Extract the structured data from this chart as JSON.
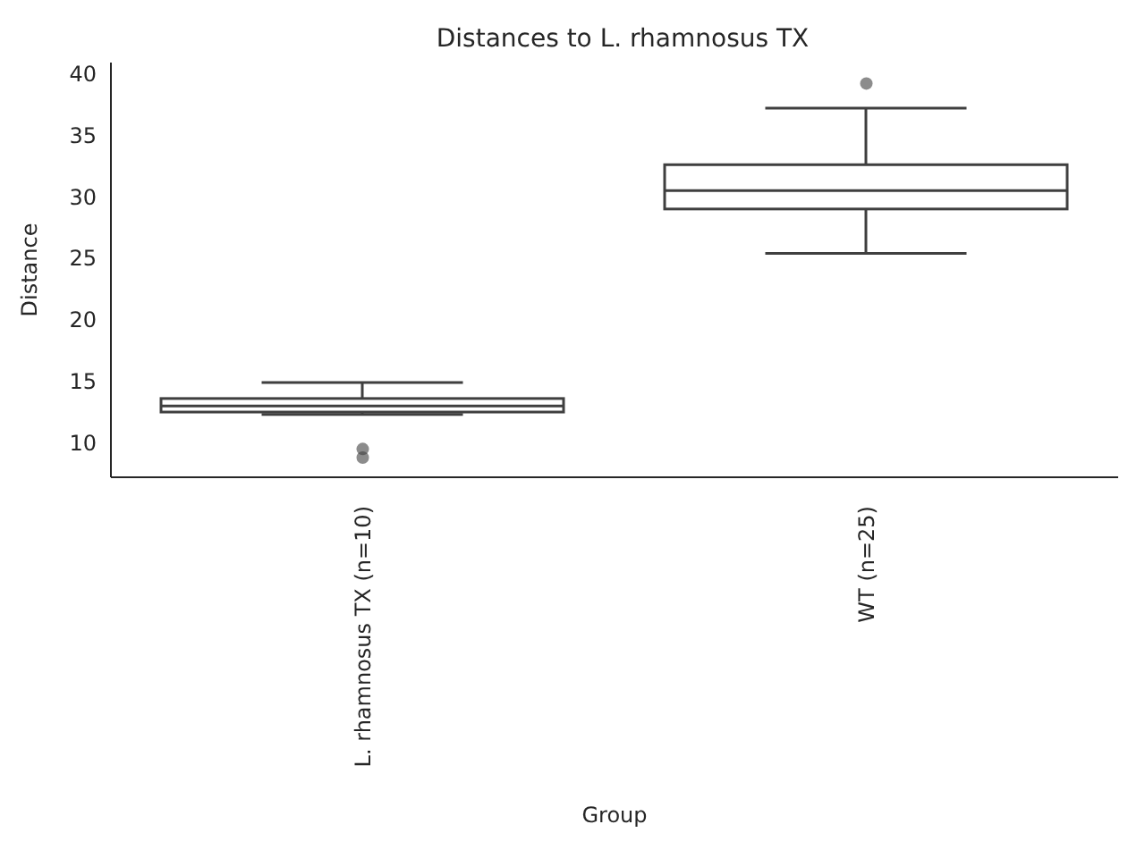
{
  "chart_data": {
    "type": "box",
    "title": "Distances to L. rhamnosus TX",
    "xlabel": "Group",
    "ylabel": "Distance",
    "categories": [
      "L. rhamnosus TX (n=10)",
      "WT (n=25)"
    ],
    "boxes": [
      {
        "low": 12.3,
        "q1": 12.5,
        "median": 13.0,
        "q3": 13.6,
        "high": 14.9,
        "outliers": [
          9.5,
          8.8
        ]
      },
      {
        "low": 25.4,
        "q1": 29.0,
        "median": 30.5,
        "q3": 32.6,
        "high": 37.2,
        "outliers": [
          39.2
        ]
      }
    ],
    "color": "#3f3f3f",
    "ylim": [
      7.2,
      40.9
    ],
    "yticks": [
      10,
      15,
      20,
      25,
      30,
      35,
      40
    ],
    "grid": false
  }
}
